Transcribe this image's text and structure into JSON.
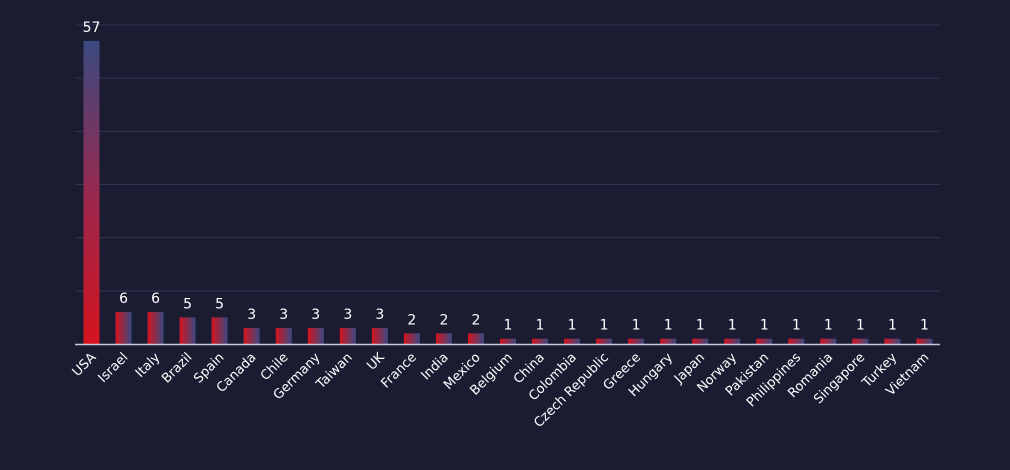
{
  "colors": {
    "background": "#1b1c32",
    "grid": "#33344d",
    "axis": "#c8c8d8",
    "text": "#ffffff",
    "bar_top": "#3a4a80",
    "bar_bottom": "#d4141e"
  },
  "chart_data": {
    "type": "bar",
    "title": "",
    "xlabel": "",
    "ylabel": "",
    "grid": true,
    "legend": "none",
    "ylim": [
      0,
      60
    ],
    "categories": [
      "USA",
      "Israel",
      "Italy",
      "Brazil",
      "Spain",
      "Canada",
      "Chile",
      "Germany",
      "Taiwan",
      "UK",
      "France",
      "India",
      "Mexico",
      "Belgium",
      "China",
      "Colombia",
      "Czech Republic",
      "Greece",
      "Hungary",
      "Japan",
      "Norway",
      "Pakistan",
      "Philippines",
      "Romania",
      "Singapore",
      "Turkey",
      "Vietnam"
    ],
    "values": [
      57,
      6,
      6,
      5,
      5,
      3,
      3,
      3,
      3,
      3,
      2,
      2,
      2,
      1,
      1,
      1,
      1,
      1,
      1,
      1,
      1,
      1,
      1,
      1,
      1,
      1,
      1
    ]
  }
}
